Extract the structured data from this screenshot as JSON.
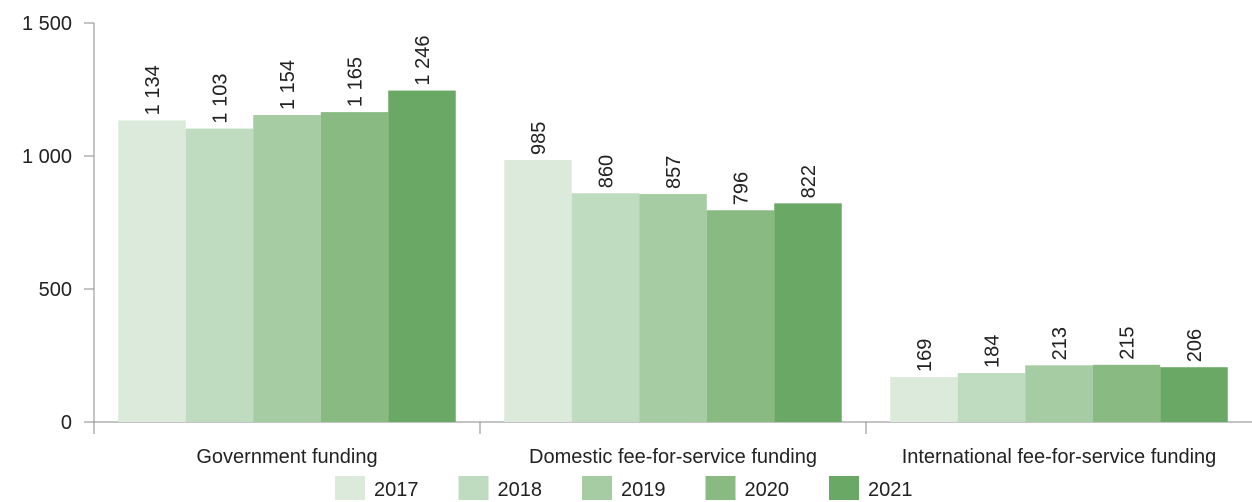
{
  "chart_data": {
    "type": "bar",
    "categories": [
      "Government funding",
      "Domestic fee-for-service funding",
      "International fee-for-service funding"
    ],
    "series": [
      {
        "name": "2017",
        "color": "#dbeadb",
        "values": [
          1134,
          985,
          169
        ],
        "labels": [
          "1 134",
          "985",
          "169"
        ]
      },
      {
        "name": "2018",
        "color": "#c0dcc0",
        "values": [
          1103,
          860,
          184
        ],
        "labels": [
          "1 103",
          "860",
          "184"
        ]
      },
      {
        "name": "2019",
        "color": "#a5cca3",
        "values": [
          1154,
          857,
          213
        ],
        "labels": [
          "1 154",
          "857",
          "213"
        ]
      },
      {
        "name": "2020",
        "color": "#88ba82",
        "values": [
          1165,
          796,
          215
        ],
        "labels": [
          "1 165",
          "796",
          "215"
        ]
      },
      {
        "name": "2021",
        "color": "#6aa866",
        "values": [
          1246,
          822,
          206
        ],
        "labels": [
          "1 246",
          "822",
          "206"
        ]
      }
    ],
    "yticks": [
      0,
      500,
      1000,
      1500
    ],
    "ytick_labels": [
      "0",
      "500",
      "1 000",
      "1 500"
    ],
    "ylim": [
      0,
      1500
    ],
    "title": "",
    "xlabel": "",
    "ylabel": "",
    "grid": false,
    "legend_position": "bottom"
  }
}
